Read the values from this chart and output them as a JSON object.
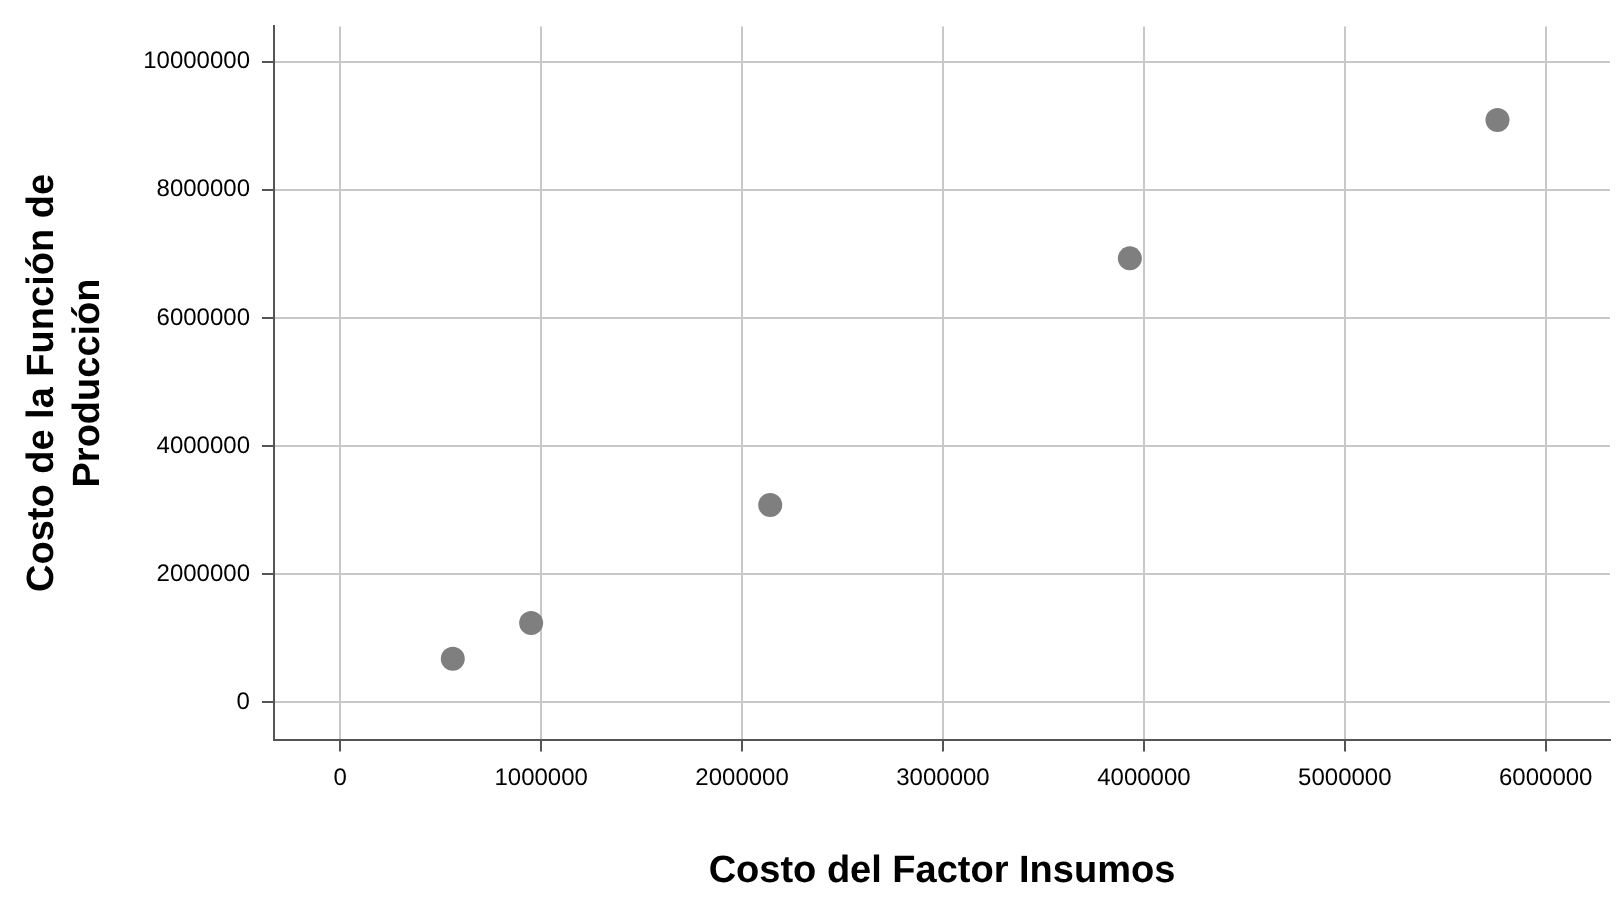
{
  "chart_data": {
    "type": "scatter",
    "xlabel": "Costo del Factor Insumos",
    "ylabel": "Costo de la Función de Producción",
    "x": [
      560000,
      950000,
      2140000,
      3930000,
      5760000
    ],
    "series": [
      {
        "color": "#7f7f7f",
        "values": [
          680000,
          1240000,
          3080000,
          6930000,
          9090000
        ]
      }
    ],
    "xlim": [
      -330000,
      6320000
    ],
    "ylim": [
      -580000,
      10550000
    ],
    "xticks": [
      0,
      1000000,
      2000000,
      3000000,
      4000000,
      5000000,
      6000000
    ],
    "yticks": [
      0,
      2000000,
      4000000,
      6000000,
      8000000,
      10000000
    ],
    "grid": true,
    "legend": false,
    "marker": "circle"
  }
}
